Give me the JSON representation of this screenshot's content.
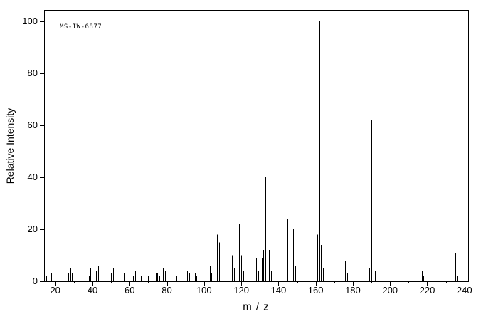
{
  "chart_data": {
    "type": "bar",
    "chart_kind": "mass-spectrum",
    "title": "MS-IW-6877",
    "xlabel": "m / z",
    "ylabel": "Relative Intensity",
    "xlim": [
      14,
      242
    ],
    "ylim": [
      0,
      100
    ],
    "x_major_ticks": [
      20,
      40,
      60,
      80,
      100,
      120,
      140,
      160,
      180,
      200,
      220,
      240
    ],
    "x_minor_tick_step": 10,
    "y_major_ticks": [
      0,
      20,
      40,
      60,
      80,
      100
    ],
    "y_minor_tick_step": 10,
    "grid": false,
    "legend": "none",
    "axis_color": "#000000",
    "peak_color": "#000000",
    "background_color": "#ffffff",
    "peaks": [
      [
        15,
        2
      ],
      [
        18,
        3
      ],
      [
        27,
        3
      ],
      [
        28,
        5
      ],
      [
        29,
        3
      ],
      [
        38,
        2
      ],
      [
        39,
        5
      ],
      [
        41,
        7
      ],
      [
        42,
        4
      ],
      [
        43,
        6
      ],
      [
        44,
        2
      ],
      [
        50,
        3
      ],
      [
        51,
        5
      ],
      [
        52,
        4
      ],
      [
        53,
        3
      ],
      [
        57,
        3
      ],
      [
        62,
        2
      ],
      [
        63,
        4
      ],
      [
        65,
        5
      ],
      [
        66,
        2
      ],
      [
        69,
        4
      ],
      [
        70,
        2
      ],
      [
        74,
        3
      ],
      [
        75,
        3
      ],
      [
        76,
        2
      ],
      [
        77,
        12
      ],
      [
        78,
        5
      ],
      [
        79,
        4
      ],
      [
        85,
        2
      ],
      [
        89,
        3
      ],
      [
        91,
        4
      ],
      [
        92,
        3
      ],
      [
        95,
        3
      ],
      [
        96,
        2
      ],
      [
        102,
        3
      ],
      [
        103,
        6
      ],
      [
        104,
        3
      ],
      [
        107,
        18
      ],
      [
        108,
        15
      ],
      [
        109,
        4
      ],
      [
        115,
        10
      ],
      [
        116,
        5
      ],
      [
        117,
        9
      ],
      [
        119,
        22
      ],
      [
        120,
        10
      ],
      [
        121,
        4
      ],
      [
        128,
        9
      ],
      [
        129,
        4
      ],
      [
        131,
        9
      ],
      [
        132,
        12
      ],
      [
        133,
        40
      ],
      [
        134,
        26
      ],
      [
        135,
        12
      ],
      [
        136,
        4
      ],
      [
        145,
        24
      ],
      [
        146,
        8
      ],
      [
        147,
        29
      ],
      [
        148,
        20
      ],
      [
        149,
        6
      ],
      [
        159,
        4
      ],
      [
        161,
        18
      ],
      [
        162,
        100
      ],
      [
        163,
        14
      ],
      [
        164,
        5
      ],
      [
        175,
        26
      ],
      [
        176,
        8
      ],
      [
        177,
        3
      ],
      [
        189,
        5
      ],
      [
        190,
        62
      ],
      [
        191,
        15
      ],
      [
        192,
        4
      ],
      [
        203,
        2
      ],
      [
        217,
        4
      ],
      [
        218,
        2
      ],
      [
        235,
        11
      ],
      [
        236,
        2
      ]
    ]
  }
}
